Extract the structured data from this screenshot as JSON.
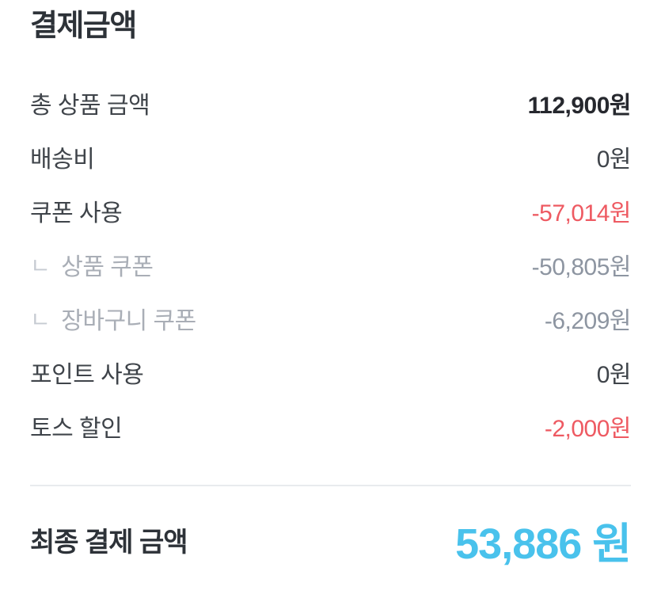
{
  "page": {
    "title": "결제금액"
  },
  "indent_marker": "ㄴ",
  "rows": [
    {
      "label": "총 상품 금액",
      "value": "112,900원"
    },
    {
      "label": "배송비",
      "value": "0원"
    },
    {
      "label": "쿠폰 사용",
      "value": "-57,014원"
    },
    {
      "label": "상품 쿠폰",
      "value": "-50,805원"
    },
    {
      "label": "장바구니 쿠폰",
      "value": "-6,209원"
    },
    {
      "label": "포인트 사용",
      "value": "0원"
    },
    {
      "label": "토스 할인",
      "value": "-2,000원"
    }
  ],
  "total": {
    "label": "최종 결제 금액",
    "value": "53,886 원"
  },
  "colors": {
    "title_text": "#2d3238",
    "label_text": "#3f444a",
    "sub_label_text": "#a9aeb6",
    "bold_value_text": "#26282e",
    "gray_value_text": "#8d95a1",
    "discount_red": "#ee5a62",
    "total_blue": "#49c2ec",
    "divider": "#e8ebee",
    "background": "#ffffff"
  }
}
